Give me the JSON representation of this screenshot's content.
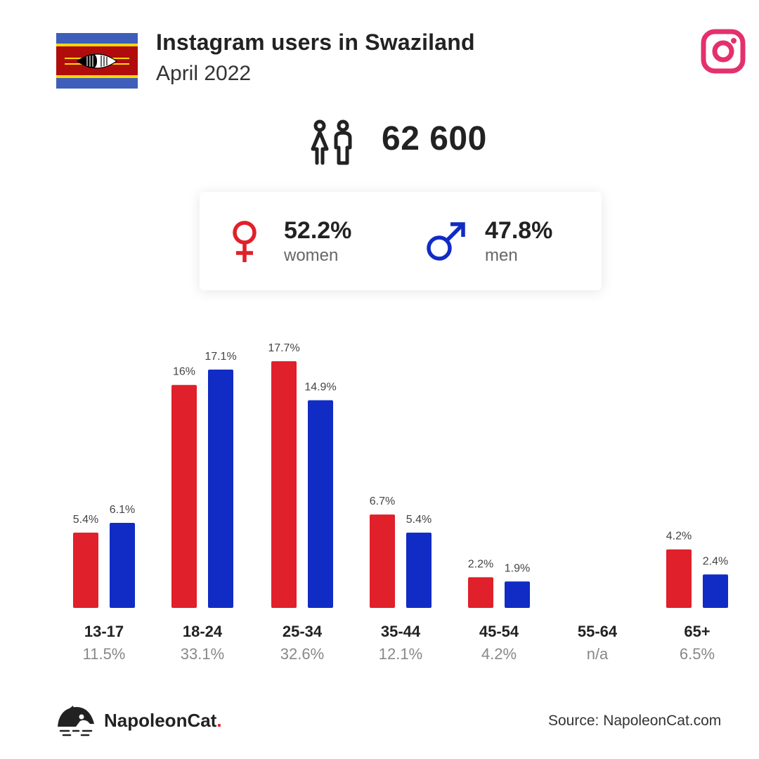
{
  "header": {
    "title": "Instagram users in Swaziland",
    "subtitle": "April 2022"
  },
  "total_users": "62 600",
  "gender": {
    "women_pct": "52.2%",
    "women_label": "women",
    "men_pct": "47.8%",
    "men_label": "men"
  },
  "colors": {
    "women": "#e0202a",
    "men": "#102cc4",
    "instagram": "#e4306c"
  },
  "icons": {
    "flag": "swaziland-flag-icon",
    "instagram": "instagram-icon",
    "users": "users-icon",
    "female": "female-icon",
    "male": "male-icon",
    "logo": "napoleoncat-logo-icon"
  },
  "chart_data": {
    "type": "bar",
    "categories": [
      "13-17",
      "18-24",
      "25-34",
      "35-44",
      "45-54",
      "55-64",
      "65+"
    ],
    "category_totals": [
      "11.5%",
      "33.1%",
      "32.6%",
      "12.1%",
      "4.2%",
      "n/a",
      "6.5%"
    ],
    "series": [
      {
        "values": [
          5.4,
          16,
          17.7,
          6.7,
          2.2,
          null,
          4.2
        ],
        "labels": [
          "5.4%",
          "16%",
          "17.7%",
          "6.7%",
          "2.2%",
          "",
          "4.2%"
        ],
        "color": "#e0202a"
      },
      {
        "values": [
          6.1,
          17.1,
          14.9,
          5.4,
          1.9,
          null,
          2.4
        ],
        "labels": [
          "6.1%",
          "17.1%",
          "14.9%",
          "5.4%",
          "1.9%",
          "",
          "2.4%"
        ],
        "color": "#102cc4"
      }
    ],
    "ylim": [
      0,
      17.7
    ],
    "grid": false
  },
  "footer": {
    "brand": "NapoleonCat",
    "brand_dot": ".",
    "source": "Source: NapoleonCat.com"
  }
}
